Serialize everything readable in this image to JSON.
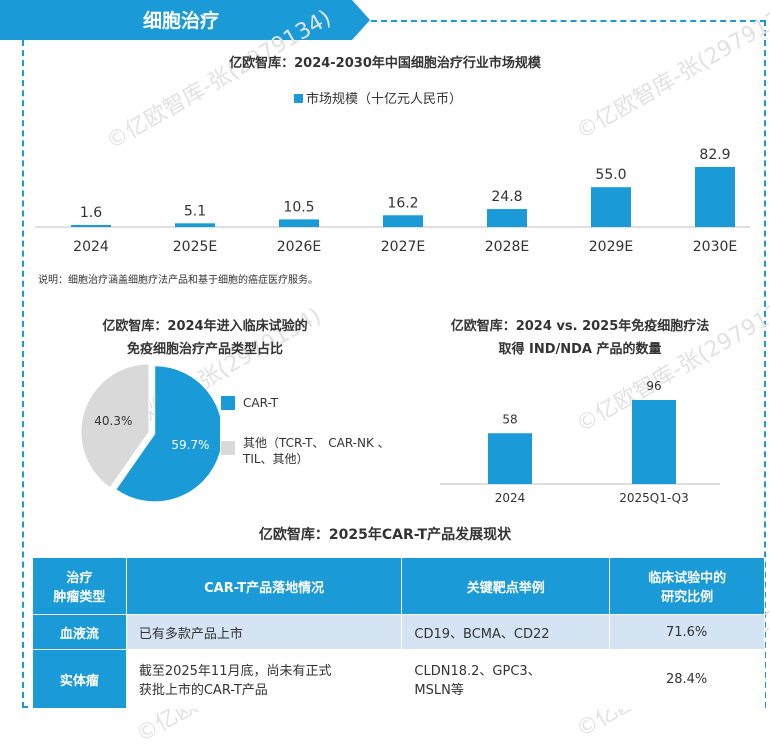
{
  "banner": {
    "title": "细胞治疗"
  },
  "watermark": "©亿欧智库-张(2979134)",
  "colors": {
    "primary": "#1a9bd7",
    "secondary": "#d9d9d9",
    "row_highlight": "#d5e4f3"
  },
  "top_chart": {
    "title": "亿欧智库：2024-2030年中国细胞治疗行业市场规模",
    "legend": "市场规模（十亿元人民币）",
    "note": "说明：细胞治疗涵盖细胞疗法产品和基于细胞的癌症医疗服务。"
  },
  "pie_chart": {
    "title_line1": "亿欧智库：2024年进入临床试验的",
    "title_line2": "免疫细胞治疗产品类型占比",
    "legend_1": "CAR-T",
    "legend_2_line1": "其他（TCR-T、 CAR-NK 、",
    "legend_2_line2": "TIL、其他）"
  },
  "ind_chart": {
    "title_line1": "亿欧智库：2024 vs. 2025年免疫细胞疗法",
    "title_line2": "取得 IND/NDA 产品的数量"
  },
  "table": {
    "title": "亿欧智库：2025年CAR-T产品发展现状",
    "headers": {
      "col1_line1": "治疗",
      "col1_line2": "肿瘤类型",
      "col2": "CAR-T产品落地情况",
      "col3": "关键靶点举例",
      "col4_line1": "临床试验中的",
      "col4_line2": "研究比例"
    },
    "rows": [
      {
        "type": "血液流",
        "status": "已有多款产品上市",
        "targets_line1": "CD19、BCMA、CD22",
        "targets_line2": "",
        "ratio": "71.6%"
      },
      {
        "type": "实体瘤",
        "status_line1": "截至2025年11月底，尚未有正式",
        "status_line2": "获批上市的CAR-T产品",
        "targets_line1": "CLDN18.2、GPC3、",
        "targets_line2": "MSLN等",
        "ratio": "28.4%"
      }
    ]
  },
  "chart_data": [
    {
      "type": "bar",
      "title": "亿欧智库：2024-2030年中国细胞治疗行业市场规模",
      "categories": [
        "2024",
        "2025E",
        "2026E",
        "2027E",
        "2028E",
        "2029E",
        "2030E"
      ],
      "series": [
        {
          "name": "市场规模（十亿元人民币）",
          "values": [
            1.6,
            5.1,
            10.5,
            16.2,
            24.8,
            55.0,
            82.9
          ]
        }
      ],
      "value_labels": [
        "1.6",
        "5.1",
        "10.5",
        "16.2",
        "24.8",
        "55.0",
        "82.9"
      ]
    },
    {
      "type": "pie",
      "title": "亿欧智库：2024年进入临床试验的免疫细胞治疗产品类型占比",
      "labels": [
        "CAR-T",
        "其他（TCR-T、 CAR-NK 、TIL、其他）"
      ],
      "values": [
        59.7,
        40.3
      ],
      "value_labels": [
        "59.7%",
        "40.3%"
      ]
    },
    {
      "type": "bar",
      "title": "亿欧智库：2024 vs. 2025年免疫细胞疗法取得 IND/NDA 产品的数量",
      "categories": [
        "2024",
        "2025Q1-Q3"
      ],
      "values": [
        58,
        96
      ],
      "value_labels": [
        "58",
        "96"
      ]
    }
  ]
}
